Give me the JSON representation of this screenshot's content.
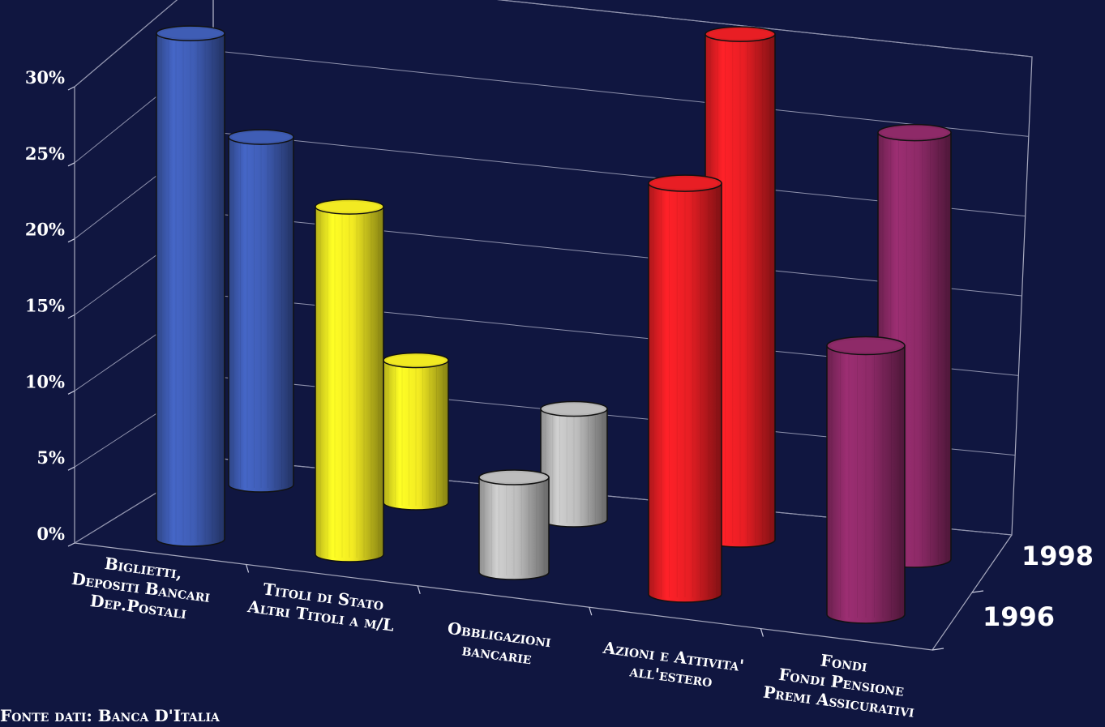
{
  "chart_data": {
    "type": "bar",
    "style": "3d-cylinder",
    "categories": [
      [
        "Biglietti,",
        "Depositi Bancari",
        "Dep.Postali"
      ],
      [
        "Titoli di Stato",
        "Altri Titoli a m/L"
      ],
      [
        "Obbligazioni",
        "bancarie"
      ],
      [
        "Azioni e Attivita'",
        "all'estero"
      ],
      [
        "Fondi",
        "Fondi Pensione",
        "Premi Assicurativi"
      ]
    ],
    "series": [
      {
        "name": "1996",
        "values": [
          32,
          22,
          6,
          26,
          17
        ]
      },
      {
        "name": "1998",
        "values": [
          22,
          9,
          7,
          32,
          27
        ]
      }
    ],
    "colors": [
      "#3f5db5",
      "#f2ea22",
      "#bdbdbd",
      "#e81e24",
      "#8e2a68"
    ],
    "yticks": [
      "0%",
      "5%",
      "10%",
      "15%",
      "20%",
      "25%",
      "30%"
    ],
    "ylim": [
      0,
      30
    ],
    "grid": true,
    "background": "#101640",
    "source": "Fonte dati: Banca D'Italia"
  }
}
